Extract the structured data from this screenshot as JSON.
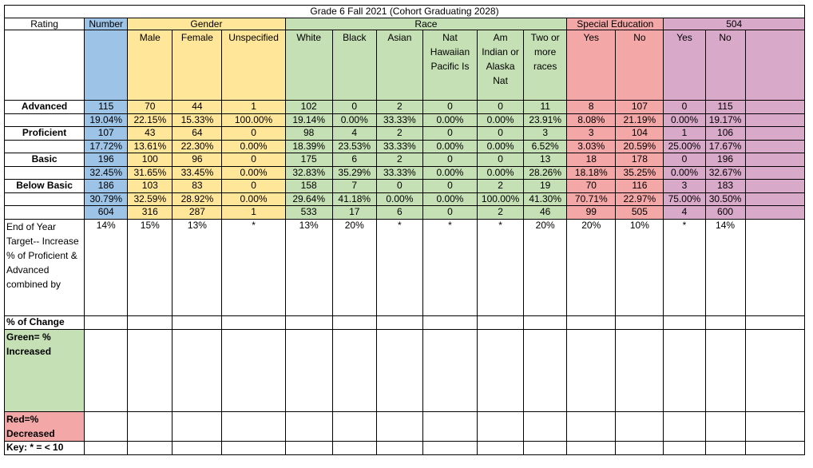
{
  "title": "Grade 6 Fall 2021 (Cohort Graduating 2028)",
  "groups": {
    "rating": "Rating",
    "number": "Number",
    "gender": "Gender",
    "race": "Race",
    "sped": "Special Education",
    "s504": "504"
  },
  "subheaders": [
    "Male",
    "Female",
    "Unspecified",
    "White",
    "Black",
    "Asian",
    "Nat Hawaiian Pacific Is",
    "Am Indian or Alaska Nat",
    "Two or more races",
    "Yes",
    "No",
    "Yes",
    "No"
  ],
  "rows": [
    {
      "label": "Advanced",
      "values": [
        "115",
        "70",
        "44",
        "1",
        "102",
        "0",
        "2",
        "0",
        "0",
        "11",
        "8",
        "107",
        "0",
        "115"
      ]
    },
    {
      "label": "",
      "values": [
        "19.04%",
        "22.15%",
        "15.33%",
        "100.00%",
        "19.14%",
        "0.00%",
        "33.33%",
        "0.00%",
        "0.00%",
        "23.91%",
        "8.08%",
        "21.19%",
        "0.00%",
        "19.17%"
      ]
    },
    {
      "label": "Proficient",
      "values": [
        "107",
        "43",
        "64",
        "0",
        "98",
        "4",
        "2",
        "0",
        "0",
        "3",
        "3",
        "104",
        "1",
        "106"
      ]
    },
    {
      "label": "",
      "values": [
        "17.72%",
        "13.61%",
        "22.30%",
        "0.00%",
        "18.39%",
        "23.53%",
        "33.33%",
        "0.00%",
        "0.00%",
        "6.52%",
        "3.03%",
        "20.59%",
        "25.00%",
        "17.67%"
      ]
    },
    {
      "label": "Basic",
      "values": [
        "196",
        "100",
        "96",
        "0",
        "175",
        "6",
        "2",
        "0",
        "0",
        "13",
        "18",
        "178",
        "0",
        "196"
      ]
    },
    {
      "label": "",
      "values": [
        "32.45%",
        "31.65%",
        "33.45%",
        "0.00%",
        "32.83%",
        "35.29%",
        "33.33%",
        "0.00%",
        "0.00%",
        "28.26%",
        "18.18%",
        "35.25%",
        "0.00%",
        "32.67%"
      ]
    },
    {
      "label": "Below Basic",
      "values": [
        "186",
        "103",
        "83",
        "0",
        "158",
        "7",
        "0",
        "0",
        "2",
        "19",
        "70",
        "116",
        "3",
        "183"
      ]
    },
    {
      "label": "",
      "values": [
        "30.79%",
        "32.59%",
        "28.92%",
        "0.00%",
        "29.64%",
        "41.18%",
        "0.00%",
        "0.00%",
        "100.00%",
        "41.30%",
        "70.71%",
        "22.97%",
        "75.00%",
        "30.50%"
      ]
    },
    {
      "label": "",
      "values": [
        "604",
        "316",
        "287",
        "1",
        "533",
        "17",
        "6",
        "0",
        "2",
        "46",
        "99",
        "505",
        "4",
        "600"
      ]
    }
  ],
  "target": {
    "label": "End of Year Target-- Increase % of Proficient & Advanced combined by",
    "values": [
      "14%",
      "15%",
      "13%",
      "*",
      "13%",
      "20%",
      "*",
      "*",
      "*",
      "20%",
      "20%",
      "10%",
      "*",
      "14%"
    ]
  },
  "change_label": "% of Change",
  "green_label": "Green= % Increased",
  "red_label": "Red=% Decreased",
  "key_label": "Key: * = < 10"
}
